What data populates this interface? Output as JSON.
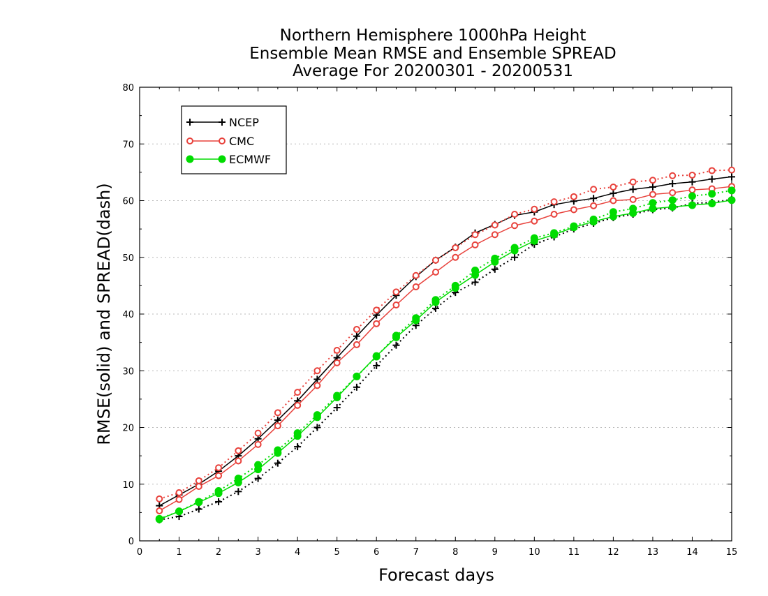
{
  "chart_data": {
    "type": "line",
    "title": [
      "Northern Hemisphere 1000hPa Height",
      "Ensemble Mean RMSE and Ensemble SPREAD",
      "Average For 20200301 - 20200531"
    ],
    "xlabel": "Forecast days",
    "ylabel": "RMSE(solid) and SPREAD(dash)",
    "xlim": [
      0,
      15
    ],
    "ylim": [
      0,
      80
    ],
    "xticks": [
      "0",
      "1",
      "2",
      "3",
      "4",
      "5",
      "6",
      "7",
      "8",
      "9",
      "10",
      "11",
      "12",
      "13",
      "14",
      "15"
    ],
    "yticks": [
      "0",
      "10",
      "20",
      "30",
      "40",
      "50",
      "60",
      "70",
      "80"
    ],
    "grid": "horizontal dotted",
    "legend_position": "top-left",
    "x": [
      0.5,
      1,
      1.5,
      2,
      2.5,
      3,
      3.5,
      4,
      4.5,
      5,
      5.5,
      6,
      6.5,
      7,
      7.5,
      8,
      8.5,
      9,
      9.5,
      10,
      10.5,
      11,
      11.5,
      12,
      12.5,
      13,
      13.5,
      14,
      14.5,
      15
    ],
    "series": [
      {
        "name": "NCEP",
        "color": "#000000",
        "marker": "plus",
        "rmse": [
          6.2,
          8.1,
          10.0,
          12.3,
          15.0,
          18.0,
          21.3,
          24.7,
          28.5,
          32.3,
          36.1,
          39.8,
          43.3,
          46.6,
          49.5,
          51.8,
          54.3,
          55.8,
          57.4,
          58.0,
          59.3,
          59.9,
          60.4,
          61.3,
          62.0,
          62.4,
          63.0,
          63.3,
          63.8,
          64.2
        ],
        "spread": [
          3.7,
          4.3,
          5.6,
          6.9,
          8.7,
          11.0,
          13.7,
          16.6,
          20.0,
          23.5,
          27.1,
          30.9,
          34.5,
          38.0,
          41.0,
          43.8,
          45.6,
          47.9,
          50.0,
          52.3,
          53.6,
          55.0,
          56.0,
          57.0,
          57.6,
          58.4,
          58.7,
          59.5,
          59.7,
          60.2
        ]
      },
      {
        "name": "CMC",
        "color": "#e8423c",
        "marker": "open-circle",
        "rmse": [
          5.3,
          7.3,
          9.6,
          11.5,
          14.1,
          17.0,
          20.3,
          23.9,
          27.4,
          31.4,
          34.6,
          38.3,
          41.6,
          44.8,
          47.4,
          50.0,
          52.2,
          54.0,
          55.6,
          56.4,
          57.6,
          58.4,
          59.1,
          60.0,
          60.2,
          61.1,
          61.4,
          61.9,
          62.1,
          62.5
        ],
        "spread": [
          7.4,
          8.5,
          10.6,
          12.9,
          15.9,
          19.0,
          22.6,
          26.2,
          30.0,
          33.6,
          37.3,
          40.7,
          43.9,
          46.8,
          49.5,
          51.7,
          54.0,
          55.7,
          57.6,
          58.5,
          59.8,
          60.7,
          62.0,
          62.4,
          63.3,
          63.6,
          64.4,
          64.5,
          65.3,
          65.4
        ]
      },
      {
        "name": "ECMWF",
        "color": "#00dc00",
        "marker": "filled-circle",
        "rmse": [
          3.8,
          5.2,
          6.8,
          8.4,
          10.3,
          12.6,
          15.5,
          18.5,
          21.8,
          25.3,
          29.0,
          32.6,
          35.9,
          38.9,
          42.1,
          44.6,
          46.9,
          49.2,
          51.2,
          52.9,
          54.0,
          55.3,
          56.3,
          57.2,
          57.8,
          58.6,
          58.9,
          59.2,
          59.5,
          60.1
        ],
        "spread": [
          3.9,
          5.2,
          6.9,
          8.8,
          11.0,
          13.4,
          16.0,
          19.0,
          22.2,
          25.6,
          29.0,
          32.5,
          36.2,
          39.3,
          42.5,
          45.0,
          47.7,
          49.8,
          51.7,
          53.4,
          54.3,
          55.5,
          56.7,
          58.0,
          58.6,
          59.6,
          60.1,
          60.8,
          61.2,
          61.8
        ]
      }
    ]
  }
}
